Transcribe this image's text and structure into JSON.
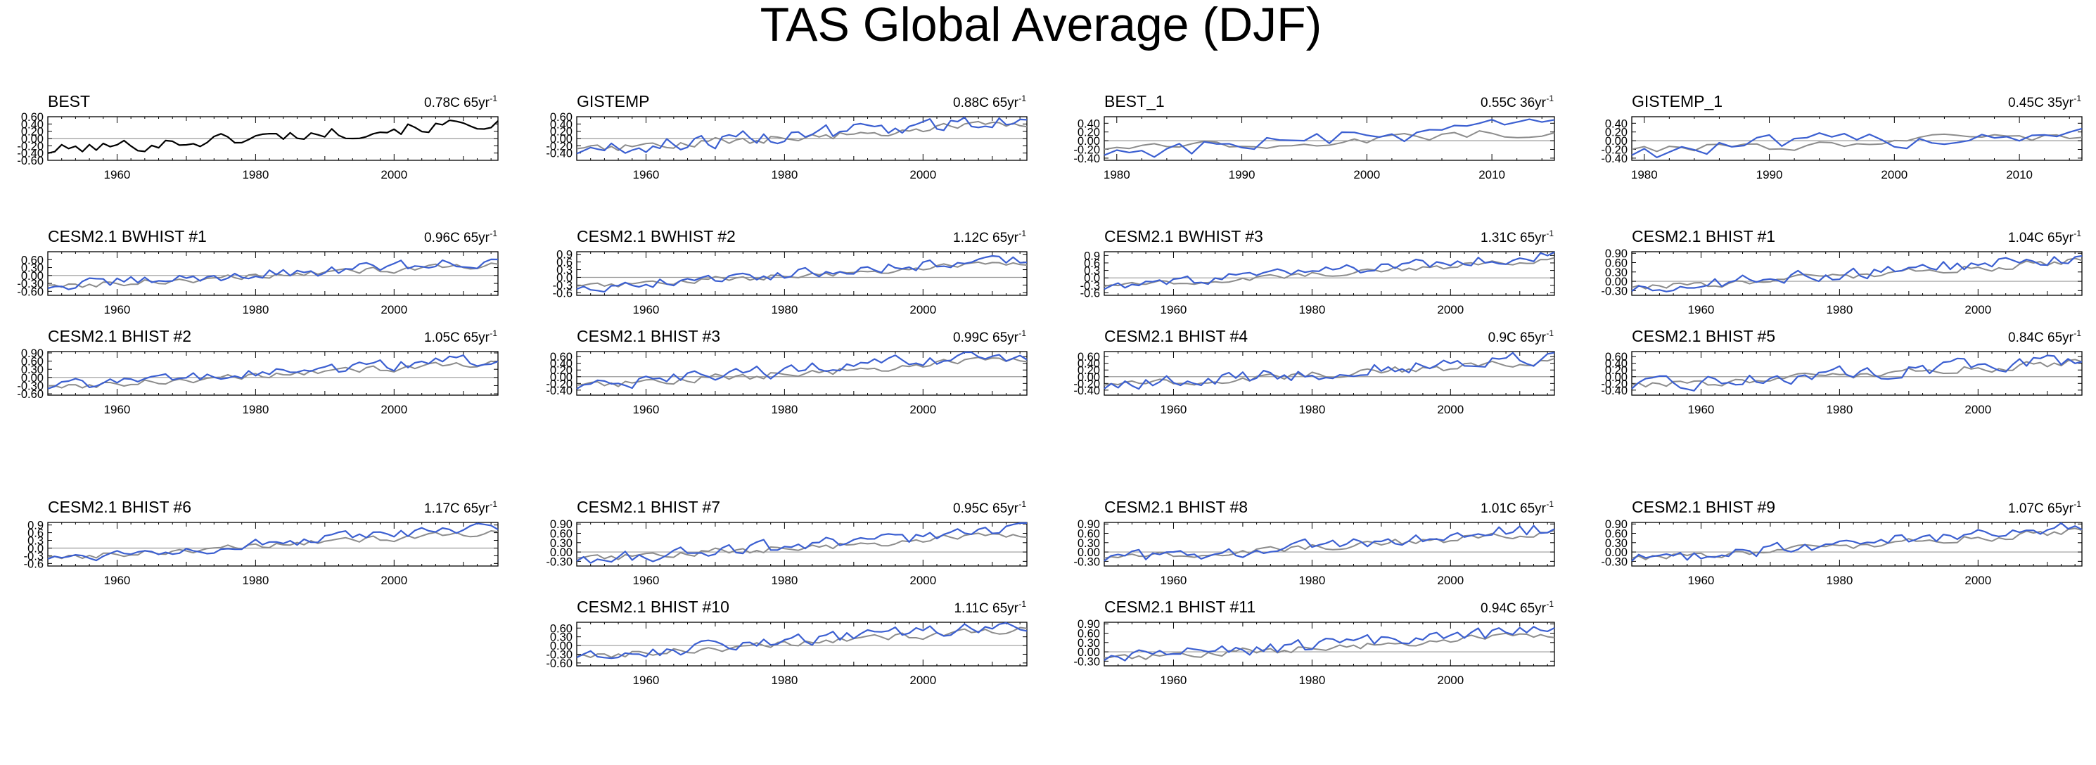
{
  "chart_data": {
    "type": "line",
    "title": "TAS Global Average (DJF)",
    "colors": {
      "model": "#3b5fd1",
      "observation": "#8c8c8c",
      "reference": "#000000",
      "zero_line": "#9a9a9a"
    },
    "panels": [
      {
        "title": "BEST",
        "trend": "0.78C 65yr",
        "trend_sup": "-1",
        "xlim": [
          1950,
          2015
        ],
        "ylim": [
          -0.6,
          0.6
        ],
        "yticks": [
          -0.6,
          -0.4,
          -0.2,
          0.0,
          0.2,
          0.4,
          0.6
        ],
        "ytick_labels": [
          "-0.60",
          "-0.40",
          "-0.20",
          "0.00",
          "0.20",
          "0.40",
          "0.60"
        ],
        "xticks": [
          1960,
          1980,
          2000
        ],
        "xtick_labels": [
          "1960",
          "1980",
          "2000"
        ],
        "obs_color": "#000000",
        "has_model": false,
        "seed": 101,
        "slope": 0.78
      },
      {
        "title": "GISTEMP",
        "trend": "0.88C 65yr",
        "trend_sup": "-1",
        "xlim": [
          1950,
          2015
        ],
        "ylim": [
          -0.6,
          0.6
        ],
        "yticks": [
          -0.4,
          -0.2,
          0.0,
          0.2,
          0.4,
          0.6
        ],
        "ytick_labels": [
          "-0.40",
          "-0.20",
          "0.00",
          "0.20",
          "0.40",
          "0.60"
        ],
        "xticks": [
          1960,
          1980,
          2000
        ],
        "xtick_labels": [
          "1960",
          "1980",
          "2000"
        ],
        "has_model": true,
        "seed": 102,
        "slope": 0.88
      },
      {
        "title": "BEST_1",
        "trend": "0.55C 36yr",
        "trend_sup": "-1",
        "xlim": [
          1979,
          2015
        ],
        "ylim": [
          -0.45,
          0.55
        ],
        "yticks": [
          -0.4,
          -0.2,
          0.0,
          0.2,
          0.4
        ],
        "ytick_labels": [
          "-0.40",
          "-0.20",
          "0.00",
          "0.20",
          "0.40"
        ],
        "xticks": [
          1980,
          1990,
          2000,
          2010
        ],
        "xtick_labels": [
          "1980",
          "1990",
          "2000",
          "2010"
        ],
        "has_model": true,
        "seed": 103,
        "slope": 0.55
      },
      {
        "title": "GISTEMP_1",
        "trend": "0.45C 35yr",
        "trend_sup": "-1",
        "xlim": [
          1979,
          2015
        ],
        "ylim": [
          -0.45,
          0.55
        ],
        "yticks": [
          -0.4,
          -0.2,
          0.0,
          0.2,
          0.4
        ],
        "ytick_labels": [
          "-0.40",
          "-0.20",
          "0.00",
          "0.20",
          "0.40"
        ],
        "xticks": [
          1980,
          1990,
          2000,
          2010
        ],
        "xtick_labels": [
          "1980",
          "1990",
          "2000",
          "2010"
        ],
        "has_model": true,
        "seed": 104,
        "slope": 0.45
      },
      {
        "title": "CESM2.1 BWHIST #1",
        "trend": "0.96C 65yr",
        "trend_sup": "-1",
        "xlim": [
          1950,
          2015
        ],
        "ylim": [
          -0.75,
          0.9
        ],
        "yticks": [
          -0.6,
          -0.3,
          0.0,
          0.3,
          0.6
        ],
        "ytick_labels": [
          "-0.60",
          "-0.30",
          "0.00",
          "0.30",
          "0.60"
        ],
        "xticks": [
          1960,
          1980,
          2000
        ],
        "xtick_labels": [
          "1960",
          "1980",
          "2000"
        ],
        "has_model": true,
        "seed": 201,
        "slope": 0.96
      },
      {
        "title": "CESM2.1 BWHIST #2",
        "trend": "1.12C 65yr",
        "trend_sup": "-1",
        "xlim": [
          1950,
          2015
        ],
        "ylim": [
          -0.7,
          1.0
        ],
        "yticks": [
          -0.6,
          -0.3,
          0.0,
          0.3,
          0.6,
          0.9
        ],
        "ytick_labels": [
          "-0.6",
          "-0.3",
          "0.0",
          "0.3",
          "0.6",
          "0.9"
        ],
        "xticks": [
          1960,
          1980,
          2000
        ],
        "xtick_labels": [
          "1960",
          "1980",
          "2000"
        ],
        "has_model": true,
        "seed": 202,
        "slope": 1.12
      },
      {
        "title": "CESM2.1 BWHIST #3",
        "trend": "1.31C 65yr",
        "trend_sup": "-1",
        "xlim": [
          1950,
          2015
        ],
        "ylim": [
          -0.7,
          1.05
        ],
        "yticks": [
          -0.6,
          -0.3,
          0.0,
          0.3,
          0.6,
          0.9
        ],
        "ytick_labels": [
          "-0.6",
          "-0.3",
          "0.0",
          "0.3",
          "0.6",
          "0.9"
        ],
        "xticks": [
          1960,
          1980,
          2000
        ],
        "xtick_labels": [
          "1960",
          "1980",
          "2000"
        ],
        "has_model": true,
        "seed": 203,
        "slope": 1.31
      },
      {
        "title": "CESM2.1 BHIST #1",
        "trend": "1.04C 65yr",
        "trend_sup": "-1",
        "xlim": [
          1950,
          2015
        ],
        "ylim": [
          -0.45,
          0.95
        ],
        "yticks": [
          -0.3,
          0.0,
          0.3,
          0.6,
          0.9
        ],
        "ytick_labels": [
          "-0.30",
          "0.00",
          "0.30",
          "0.60",
          "0.90"
        ],
        "xticks": [
          1960,
          1980,
          2000
        ],
        "xtick_labels": [
          "1960",
          "1980",
          "2000"
        ],
        "has_model": true,
        "seed": 204,
        "slope": 1.04
      },
      {
        "title": "CESM2.1 BHIST #2",
        "trend": "1.05C 65yr",
        "trend_sup": "-1",
        "xlim": [
          1950,
          2015
        ],
        "ylim": [
          -0.65,
          0.95
        ],
        "yticks": [
          -0.6,
          -0.3,
          0.0,
          0.3,
          0.6,
          0.9
        ],
        "ytick_labels": [
          "-0.60",
          "-0.30",
          "0.00",
          "0.30",
          "0.60",
          "0.90"
        ],
        "xticks": [
          1960,
          1980,
          2000
        ],
        "xtick_labels": [
          "1960",
          "1980",
          "2000"
        ],
        "has_model": true,
        "seed": 301,
        "slope": 1.05
      },
      {
        "title": "CESM2.1 BHIST #3",
        "trend": "0.99C 65yr",
        "trend_sup": "-1",
        "xlim": [
          1950,
          2015
        ],
        "ylim": [
          -0.55,
          0.75
        ],
        "yticks": [
          -0.4,
          -0.2,
          0.0,
          0.2,
          0.4,
          0.6
        ],
        "ytick_labels": [
          "-0.40",
          "-0.20",
          "0.00",
          "0.20",
          "0.40",
          "0.60"
        ],
        "xticks": [
          1960,
          1980,
          2000
        ],
        "xtick_labels": [
          "1960",
          "1980",
          "2000"
        ],
        "has_model": true,
        "seed": 302,
        "slope": 0.99
      },
      {
        "title": "CESM2.1 BHIST #4",
        "trend": "0.9C 65yr",
        "trend_sup": "-1",
        "xlim": [
          1950,
          2015
        ],
        "ylim": [
          -0.55,
          0.75
        ],
        "yticks": [
          -0.4,
          -0.2,
          0.0,
          0.2,
          0.4,
          0.6
        ],
        "ytick_labels": [
          "-0.40",
          "-0.20",
          "0.00",
          "0.20",
          "0.40",
          "0.60"
        ],
        "xticks": [
          1960,
          1980,
          2000
        ],
        "xtick_labels": [
          "1960",
          "1980",
          "2000"
        ],
        "has_model": true,
        "seed": 303,
        "slope": 0.9
      },
      {
        "title": "CESM2.1 BHIST #5",
        "trend": "0.84C 65yr",
        "trend_sup": "-1",
        "xlim": [
          1950,
          2015
        ],
        "ylim": [
          -0.55,
          0.75
        ],
        "yticks": [
          -0.4,
          -0.2,
          0.0,
          0.2,
          0.4,
          0.6
        ],
        "ytick_labels": [
          "-0.40",
          "-0.20",
          "0.00",
          "0.20",
          "0.40",
          "0.60"
        ],
        "xticks": [
          1960,
          1980,
          2000
        ],
        "xtick_labels": [
          "1960",
          "1980",
          "2000"
        ],
        "has_model": true,
        "seed": 304,
        "slope": 0.84
      },
      {
        "title": "CESM2.1 BHIST #6",
        "trend": "1.17C 65yr",
        "trend_sup": "-1",
        "xlim": [
          1950,
          2015
        ],
        "ylim": [
          -0.7,
          1.0
        ],
        "yticks": [
          -0.6,
          -0.3,
          0.0,
          0.3,
          0.6,
          0.9
        ],
        "ytick_labels": [
          "-0.6",
          "-0.3",
          "0.0",
          "0.3",
          "0.6",
          "0.9"
        ],
        "xticks": [
          1960,
          1980,
          2000
        ],
        "xtick_labels": [
          "1960",
          "1980",
          "2000"
        ],
        "has_model": true,
        "seed": 401,
        "slope": 1.17
      },
      {
        "title": "CESM2.1 BHIST #7",
        "trend": "0.95C 65yr",
        "trend_sup": "-1",
        "xlim": [
          1950,
          2015
        ],
        "ylim": [
          -0.45,
          0.95
        ],
        "yticks": [
          -0.3,
          0.0,
          0.3,
          0.6,
          0.9
        ],
        "ytick_labels": [
          "-0.30",
          "0.00",
          "0.30",
          "0.60",
          "0.90"
        ],
        "xticks": [
          1960,
          1980,
          2000
        ],
        "xtick_labels": [
          "1960",
          "1980",
          "2000"
        ],
        "has_model": true,
        "seed": 402,
        "slope": 0.95
      },
      {
        "title": "CESM2.1 BHIST #8",
        "trend": "1.01C 65yr",
        "trend_sup": "-1",
        "xlim": [
          1950,
          2015
        ],
        "ylim": [
          -0.45,
          0.95
        ],
        "yticks": [
          -0.3,
          0.0,
          0.3,
          0.6,
          0.9
        ],
        "ytick_labels": [
          "-0.30",
          "0.00",
          "0.30",
          "0.60",
          "0.90"
        ],
        "xticks": [
          1960,
          1980,
          2000
        ],
        "xtick_labels": [
          "1960",
          "1980",
          "2000"
        ],
        "has_model": true,
        "seed": 403,
        "slope": 1.01
      },
      {
        "title": "CESM2.1 BHIST #9",
        "trend": "1.07C 65yr",
        "trend_sup": "-1",
        "xlim": [
          1950,
          2015
        ],
        "ylim": [
          -0.45,
          0.95
        ],
        "yticks": [
          -0.3,
          0.0,
          0.3,
          0.6,
          0.9
        ],
        "ytick_labels": [
          "-0.30",
          "0.00",
          "0.30",
          "0.60",
          "0.90"
        ],
        "xticks": [
          1960,
          1980,
          2000
        ],
        "xtick_labels": [
          "1960",
          "1980",
          "2000"
        ],
        "has_model": true,
        "seed": 404,
        "slope": 1.07
      },
      {
        "title": "CESM2.1 BHIST #10",
        "trend": "1.11C 65yr",
        "trend_sup": "-1",
        "xlim": [
          1950,
          2015
        ],
        "ylim": [
          -0.7,
          0.8
        ],
        "yticks": [
          -0.6,
          -0.3,
          0.0,
          0.3,
          0.6
        ],
        "ytick_labels": [
          "-0.60",
          "-0.30",
          "0.00",
          "0.30",
          "0.60"
        ],
        "xticks": [
          1960,
          1980,
          2000
        ],
        "xtick_labels": [
          "1960",
          "1980",
          "2000"
        ],
        "has_model": true,
        "seed": 501,
        "slope": 1.11
      },
      {
        "title": "CESM2.1 BHIST #11",
        "trend": "0.94C 65yr",
        "trend_sup": "-1",
        "xlim": [
          1950,
          2015
        ],
        "ylim": [
          -0.45,
          0.95
        ],
        "yticks": [
          -0.3,
          0.0,
          0.3,
          0.6,
          0.9
        ],
        "ytick_labels": [
          "-0.30",
          "0.00",
          "0.30",
          "0.60",
          "0.90"
        ],
        "xticks": [
          1960,
          1980,
          2000
        ],
        "xtick_labels": [
          "1960",
          "1980",
          "2000"
        ],
        "has_model": true,
        "seed": 502,
        "slope": 0.94
      }
    ]
  }
}
